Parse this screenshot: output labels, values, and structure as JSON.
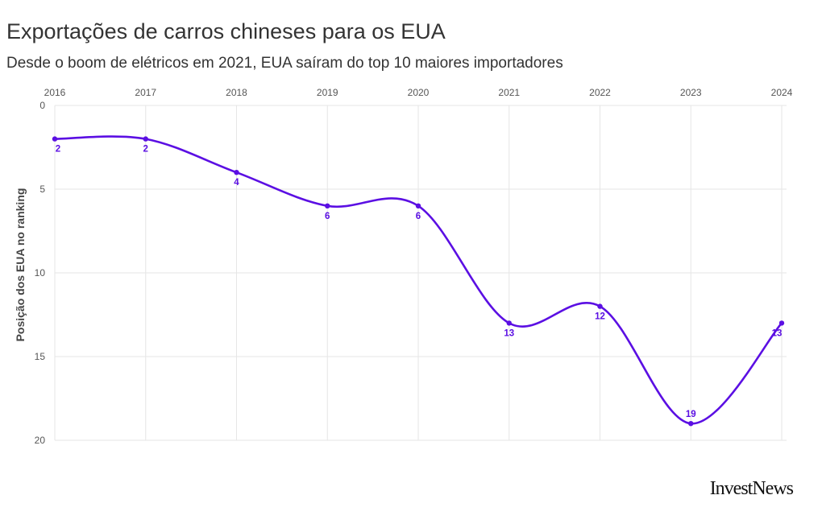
{
  "title": "Exportações de carros chineses para os EUA",
  "subtitle": "Desde o boom de elétricos em 2021, EUA saíram do top 10 maiores importadores",
  "logo": "InvestNews",
  "colors": {
    "line": "#5b0fe3",
    "grid": "#e6e6e6",
    "text": "#333333"
  },
  "chart_data": {
    "type": "line",
    "x": [
      2016,
      2017,
      2018,
      2019,
      2020,
      2021,
      2022,
      2023,
      2024
    ],
    "xlabel": "",
    "ylabel": "Posição dos EUA no ranking",
    "ylim": [
      0,
      20
    ],
    "y_inverted": true,
    "y_ticks": [
      0,
      5,
      10,
      15,
      20
    ],
    "x_axis_position": "top",
    "grid": true,
    "series": [
      {
        "values": [
          2,
          2,
          4,
          6,
          6,
          13,
          12,
          19,
          13
        ],
        "labels": [
          "2",
          "2",
          "4",
          "6",
          "6",
          "13",
          "12",
          "19",
          "13"
        ]
      }
    ]
  }
}
